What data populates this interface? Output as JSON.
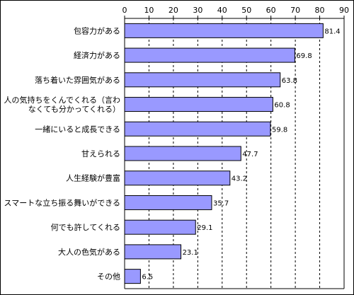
{
  "chart_data": {
    "type": "bar",
    "orientation": "horizontal",
    "categories": [
      [
        "包容力がある"
      ],
      [
        "経済力がある"
      ],
      [
        "落ち着いた雰囲気がある"
      ],
      [
        "人の気持ちをくんでくれる（言わ",
        "なくても分かってくれる）"
      ],
      [
        "一緒にいると成長できる"
      ],
      [
        "甘えられる"
      ],
      [
        "人生経験が豊富"
      ],
      [
        "スマートな立ち振る舞いができる"
      ],
      [
        "何でも許してくれる"
      ],
      [
        "大人の色気がある"
      ],
      [
        "その他"
      ]
    ],
    "values": [
      81.4,
      69.8,
      63.8,
      60.8,
      59.8,
      47.7,
      43.2,
      35.7,
      29.1,
      23.1,
      6.5
    ],
    "value_labels": [
      "81.4",
      "69.8",
      "63.8",
      "60.8",
      "59.8",
      "47.7",
      "43.2",
      "35.7",
      "29.1",
      "23.1",
      "6.5"
    ],
    "xlim": [
      0,
      90
    ],
    "xticks": [
      "0",
      "10",
      "20",
      "30",
      "40",
      "50",
      "60",
      "70",
      "80",
      "90"
    ],
    "grid": "vertical dashed",
    "bar_color": "#9999ff",
    "bar_border_color": "#000000",
    "axis_position": "top"
  }
}
